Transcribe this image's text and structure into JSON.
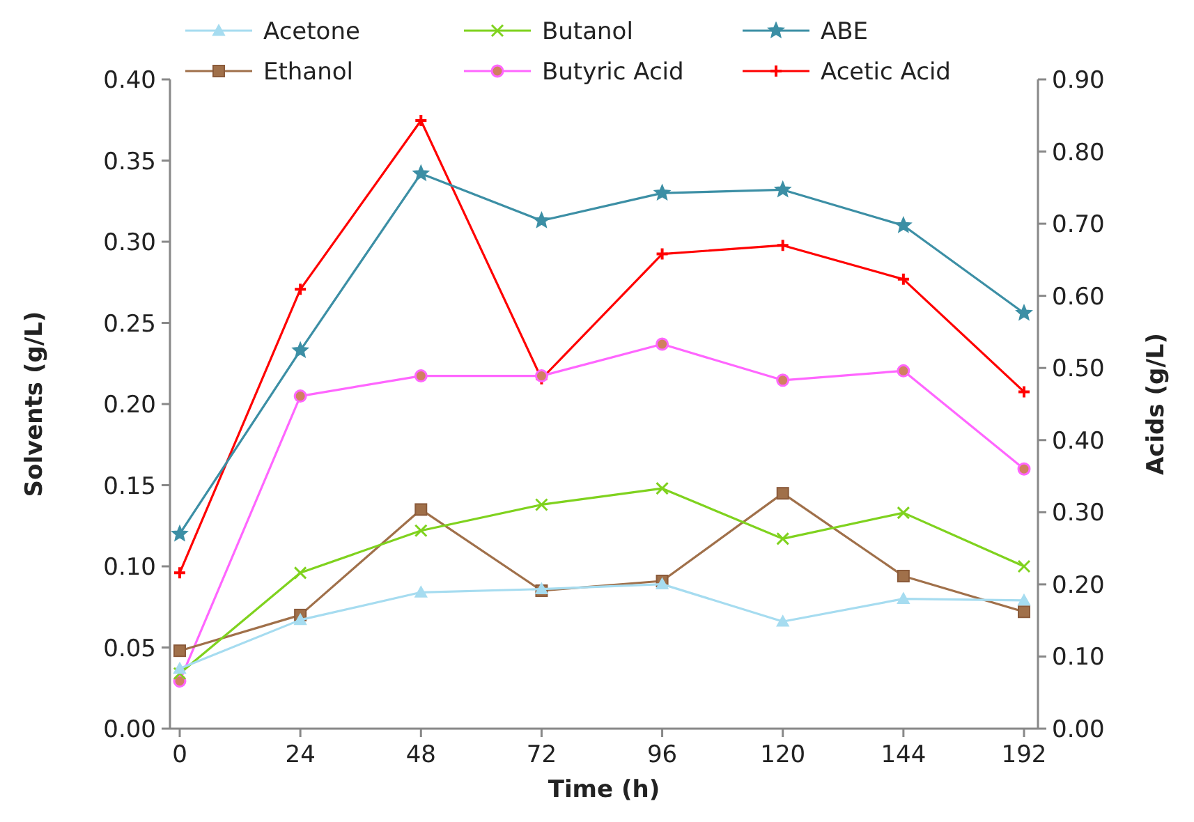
{
  "chart_data": {
    "type": "line",
    "xlabel": "Time (h)",
    "ylabel": "Solvents (g/L)",
    "y2label": "Acids (g/L)",
    "categories": [
      "0",
      "24",
      "48",
      "72",
      "96",
      "120",
      "144",
      "192"
    ],
    "ylim": [
      0,
      0.4
    ],
    "yticks": [
      {
        "value": 0,
        "label": "0.00"
      },
      {
        "value": 0.05,
        "label": "0.05"
      },
      {
        "value": 0.1,
        "label": "0.10"
      },
      {
        "value": 0.15,
        "label": "0.15"
      },
      {
        "value": 0.2,
        "label": "0.20"
      },
      {
        "value": 0.25,
        "label": "0.25"
      },
      {
        "value": 0.3,
        "label": "0.30"
      },
      {
        "value": 0.35,
        "label": "0.35"
      },
      {
        "value": 0.4,
        "label": "0.40"
      }
    ],
    "y2lim": [
      0,
      0.9
    ],
    "y2ticks": [
      {
        "value": 0,
        "label": "0.00"
      },
      {
        "value": 0.1,
        "label": "0.10"
      },
      {
        "value": 0.2,
        "label": "0.20"
      },
      {
        "value": 0.3,
        "label": "0.30"
      },
      {
        "value": 0.4,
        "label": "0.40"
      },
      {
        "value": 0.5,
        "label": "0.50"
      },
      {
        "value": 0.6,
        "label": "0.60"
      },
      {
        "value": 0.7,
        "label": "0.70"
      },
      {
        "value": 0.8,
        "label": "0.80"
      },
      {
        "value": 0.9,
        "label": "0.90"
      }
    ],
    "grid": false,
    "legend": "top",
    "line_style": "solid",
    "series": [
      {
        "name": "Acetone",
        "color": "#a6dcf0",
        "marker": "triangle",
        "values": [
          0.037,
          0.067,
          0.084,
          0.086,
          0.089,
          0.066,
          0.08,
          0.079
        ]
      },
      {
        "name": "Butanol",
        "color": "#7fd21e",
        "marker": "cross",
        "values": [
          0.034,
          0.096,
          0.122,
          0.138,
          0.148,
          0.117,
          0.133,
          0.1
        ]
      },
      {
        "name": "ABE",
        "color": "#3c8fa5",
        "marker": "star",
        "values": [
          0.12,
          0.233,
          0.342,
          0.313,
          0.33,
          0.332,
          0.31,
          0.256
        ]
      },
      {
        "name": "Ethanol",
        "color": "#a0704a",
        "marker": "square",
        "values": [
          0.048,
          0.07,
          0.135,
          0.085,
          0.091,
          0.145,
          0.094,
          0.072
        ]
      },
      {
        "name": "Butyric Acid",
        "color": "#ff66ff",
        "marker": "circle",
        "axis": "y2",
        "values": [
          0.066,
          0.461,
          0.489,
          0.489,
          0.533,
          0.483,
          0.496,
          0.36
        ]
      },
      {
        "name": "Acetic Acid",
        "color": "#ff0000",
        "marker": "cross",
        "axis": "y2",
        "values": [
          0.216,
          0.609,
          0.843,
          0.485,
          0.658,
          0.67,
          0.623,
          0.467
        ]
      }
    ]
  }
}
